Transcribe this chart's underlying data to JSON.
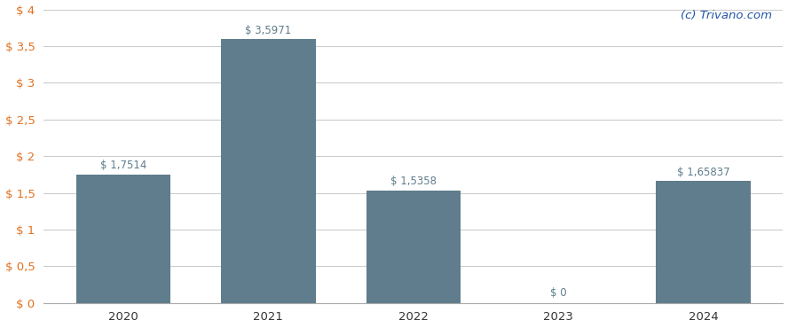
{
  "categories": [
    "2020",
    "2021",
    "2022",
    "2023",
    "2024"
  ],
  "values": [
    1.7514,
    3.5971,
    1.5358,
    0.0,
    1.65837
  ],
  "labels": [
    "$ 1,7514",
    "$ 3,5971",
    "$ 1,5358",
    "$ 0",
    "$ 1,65837"
  ],
  "bar_color": "#5f7d8c",
  "background_color": "#ffffff",
  "grid_color": "#cccccc",
  "ylim": [
    0,
    4.0
  ],
  "yticks": [
    0.0,
    0.5,
    1.0,
    1.5,
    2.0,
    2.5,
    3.0,
    3.5,
    4.0
  ],
  "ytick_labels": [
    "$ 0",
    "$ 0,5",
    "$ 1",
    "$ 1,5",
    "$ 2",
    "$ 2,5",
    "$ 3",
    "$ 3,5",
    "$ 4"
  ],
  "watermark": "(c) Trivano.com",
  "watermark_color": "#2255aa",
  "tick_color": "#e07020",
  "label_color": "#5f7d8c",
  "label_fontsize": 8.5,
  "tick_fontsize": 9.5,
  "watermark_fontsize": 9.5,
  "xtick_color": "#333333",
  "bar_width": 0.65
}
